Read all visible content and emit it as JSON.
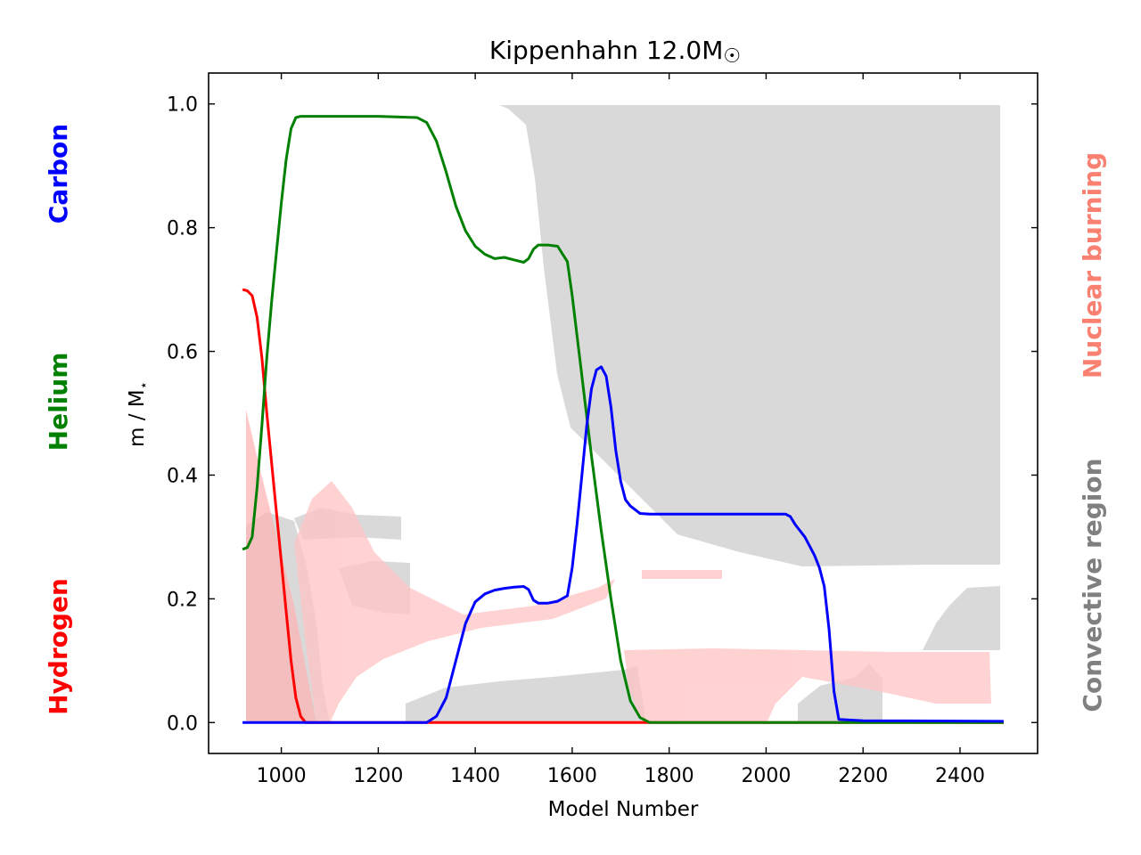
{
  "chart_data": {
    "type": "line",
    "title": "Kippenhahn 12.0M",
    "title_symbol": "☉",
    "xlabel": "Model Number",
    "ylabel": "m / M",
    "ylabel_subscript": "⋆",
    "xlim": [
      850,
      2560
    ],
    "ylim": [
      -0.05,
      1.05
    ],
    "x_ticks": [
      1000,
      1200,
      1400,
      1600,
      1800,
      2000,
      2200,
      2400
    ],
    "y_ticks": [
      0.0,
      0.2,
      0.4,
      0.6,
      0.8,
      1.0
    ],
    "y_tick_labels": [
      "0.0",
      "0.2",
      "0.4",
      "0.6",
      "0.8",
      "1.0"
    ],
    "grid": false,
    "left_labels": [
      {
        "text": "Carbon",
        "color": "#0000ff"
      },
      {
        "text": "Helium",
        "color": "#008000"
      },
      {
        "text": "Hydrogen",
        "color": "#ff0000"
      }
    ],
    "right_labels": [
      {
        "text": "Nuclear burning",
        "color": "#fa8072"
      },
      {
        "text": "Convective region",
        "color": "#808080"
      }
    ],
    "colors": {
      "hydrogen": "#ff0000",
      "helium": "#008000",
      "carbon": "#0000ff",
      "convective": "#d9d9d9",
      "burning": "#ffb6b6"
    },
    "series": [
      {
        "key": "hydrogen",
        "x": [
          920,
          930,
          940,
          950,
          960,
          970,
          980,
          990,
          1000,
          1010,
          1020,
          1030,
          1040,
          1050,
          1100,
          2490
        ],
        "values": [
          0.7,
          0.698,
          0.69,
          0.655,
          0.59,
          0.5,
          0.42,
          0.34,
          0.26,
          0.18,
          0.1,
          0.04,
          0.01,
          0.0,
          0.0,
          0.0
        ]
      },
      {
        "key": "helium",
        "x": [
          920,
          930,
          940,
          950,
          960,
          970,
          980,
          990,
          1000,
          1010,
          1020,
          1030,
          1040,
          1050,
          1060,
          1100,
          1200,
          1280,
          1300,
          1320,
          1340,
          1360,
          1380,
          1400,
          1420,
          1440,
          1460,
          1480,
          1500,
          1510,
          1520,
          1530,
          1550,
          1570,
          1590,
          1600,
          1620,
          1640,
          1660,
          1680,
          1700,
          1720,
          1740,
          1760,
          2490
        ],
        "values": [
          0.28,
          0.283,
          0.3,
          0.38,
          0.48,
          0.59,
          0.68,
          0.76,
          0.84,
          0.91,
          0.96,
          0.978,
          0.98,
          0.98,
          0.98,
          0.98,
          0.98,
          0.978,
          0.97,
          0.94,
          0.89,
          0.835,
          0.795,
          0.77,
          0.757,
          0.75,
          0.752,
          0.748,
          0.744,
          0.75,
          0.765,
          0.772,
          0.772,
          0.77,
          0.745,
          0.69,
          0.56,
          0.43,
          0.31,
          0.2,
          0.1,
          0.035,
          0.008,
          0.0,
          0.0
        ]
      },
      {
        "key": "carbon",
        "x": [
          920,
          1300,
          1320,
          1340,
          1360,
          1380,
          1400,
          1420,
          1440,
          1460,
          1480,
          1500,
          1510,
          1520,
          1530,
          1550,
          1570,
          1590,
          1600,
          1610,
          1620,
          1630,
          1640,
          1650,
          1660,
          1670,
          1680,
          1690,
          1700,
          1710,
          1720,
          1740,
          1760,
          1800,
          1900,
          2000,
          2040,
          2050,
          2060,
          2080,
          2100,
          2110,
          2120,
          2130,
          2140,
          2150,
          2200,
          2490
        ],
        "values": [
          0.0,
          0.0,
          0.01,
          0.04,
          0.1,
          0.16,
          0.195,
          0.208,
          0.214,
          0.217,
          0.219,
          0.22,
          0.215,
          0.198,
          0.193,
          0.193,
          0.196,
          0.205,
          0.25,
          0.32,
          0.4,
          0.48,
          0.54,
          0.57,
          0.575,
          0.56,
          0.51,
          0.44,
          0.39,
          0.36,
          0.35,
          0.338,
          0.337,
          0.337,
          0.337,
          0.337,
          0.337,
          0.333,
          0.32,
          0.3,
          0.27,
          0.25,
          0.22,
          0.15,
          0.05,
          0.005,
          0.003,
          0.002
        ]
      }
    ]
  }
}
